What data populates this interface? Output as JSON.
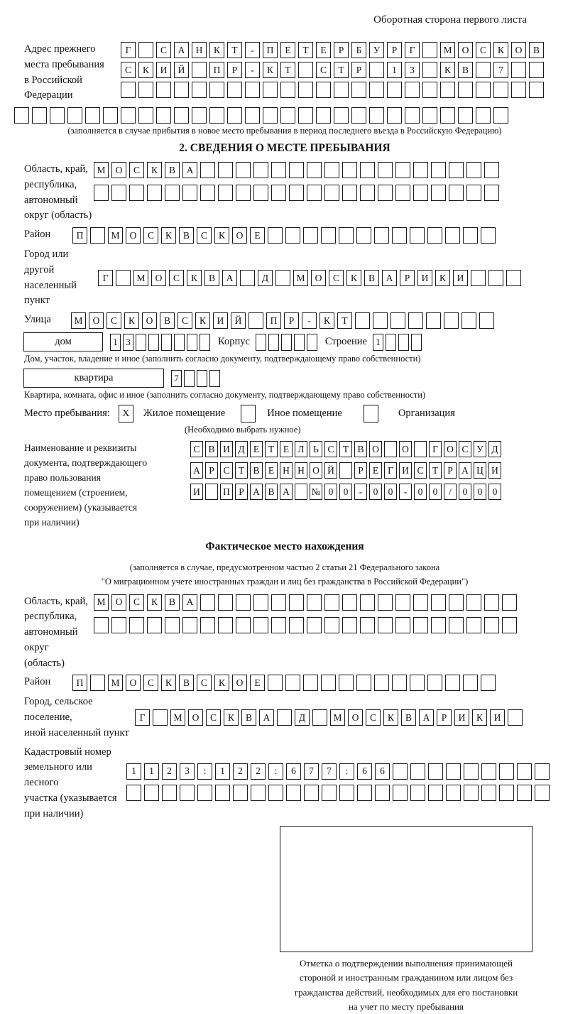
{
  "page": {
    "header_note": "Оборотная сторона первого листа"
  },
  "prev_address": {
    "label_lines": [
      "Адрес прежнего",
      "места пребывания",
      "в Российской",
      "Федерации"
    ],
    "row1": [
      "Г",
      "",
      "С",
      "А",
      "Н",
      "К",
      "Т",
      "-",
      "П",
      "Е",
      "Т",
      "Е",
      "Р",
      "Б",
      "У",
      "Р",
      "Г",
      "",
      "М",
      "О",
      "С",
      "К",
      "О",
      "В"
    ],
    "row2": [
      "С",
      "К",
      "И",
      "Й",
      "",
      "П",
      "Р",
      "-",
      "К",
      "Т",
      "",
      "С",
      "Т",
      "Р",
      "",
      "1",
      "3",
      "",
      "К",
      "В",
      "",
      "7",
      "",
      ""
    ],
    "row3": [
      "",
      "",
      "",
      "",
      "",
      "",
      "",
      "",
      "",
      "",
      "",
      "",
      "",
      "",
      "",
      "",
      "",
      "",
      "",
      "",
      "",
      "",
      "",
      ""
    ],
    "row4": [
      "",
      "",
      "",
      "",
      "",
      "",
      "",
      "",
      "",
      "",
      "",
      "",
      "",
      "",
      "",
      "",
      "",
      "",
      "",
      "",
      "",
      "",
      "",
      "",
      "",
      "",
      "",
      ""
    ],
    "footnote": "(заполняется в случае прибытия в новое место пребывания в период последнего въезда в Российскую Федерацию)"
  },
  "section2": {
    "heading": "2. СВЕДЕНИЯ О МЕСТЕ ПРЕБЫВАНИЯ",
    "oblast": {
      "label_lines": [
        "Область, край,",
        "республика,",
        "автономный",
        "округ (область)"
      ],
      "row1": [
        "М",
        "О",
        "С",
        "К",
        "В",
        "А",
        "",
        "",
        "",
        "",
        "",
        "",
        "",
        "",
        "",
        "",
        "",
        "",
        "",
        "",
        "",
        "",
        ""
      ],
      "row2": [
        "",
        "",
        "",
        "",
        "",
        "",
        "",
        "",
        "",
        "",
        "",
        "",
        "",
        "",
        "",
        "",
        "",
        "",
        "",
        "",
        "",
        "",
        ""
      ]
    },
    "raion": {
      "label": "Район",
      "row": [
        "П",
        "",
        "М",
        "О",
        "С",
        "К",
        "В",
        "С",
        "К",
        "О",
        "Е",
        "",
        "",
        "",
        "",
        "",
        "",
        "",
        "",
        "",
        "",
        "",
        "",
        ""
      ]
    },
    "gorod": {
      "label_lines": [
        "Город или другой",
        "населенный пункт"
      ],
      "row": [
        "Г",
        "",
        "М",
        "О",
        "С",
        "К",
        "В",
        "А",
        "",
        "Д",
        "",
        "М",
        "О",
        "С",
        "К",
        "В",
        "А",
        "Р",
        "И",
        "К",
        "И",
        "",
        "",
        ""
      ]
    },
    "ulitsa": {
      "label": "Улица",
      "row": [
        "М",
        "О",
        "С",
        "К",
        "О",
        "В",
        "С",
        "К",
        "И",
        "Й",
        "",
        "П",
        "Р",
        "-",
        "К",
        "Т",
        "",
        "",
        "",
        "",
        "",
        "",
        "",
        ""
      ]
    },
    "dom": {
      "box_label": "дом",
      "cells": [
        "1",
        "3",
        "",
        "",
        "",
        "",
        "",
        ""
      ],
      "korpus_label": "Корпус",
      "korpus_cells": [
        "",
        "",
        "",
        "",
        ""
      ],
      "stroenie_label": "Строение",
      "stroenie_cells": [
        "1",
        "",
        "",
        ""
      ]
    },
    "dom_caption": "Дом, участок, владение и иное (заполнить согласно документу, подтверждающему право собственности)",
    "kvartira": {
      "box_label": "квартира",
      "cells": [
        "7",
        "",
        "",
        ""
      ]
    },
    "kvartira_caption": "Квартира, комната, офис и иное (заполнить согласно документу, подтверждающему право собственности)",
    "mesto": {
      "label": "Место пребывания:",
      "options": [
        {
          "label": "Жилое помещение",
          "mark": "X"
        },
        {
          "label": "Иное помещение",
          "mark": ""
        },
        {
          "label": "Организация",
          "mark": ""
        }
      ],
      "note": "(Необходимо выбрать нужное)"
    },
    "doc": {
      "label_lines": [
        "Наименование и реквизиты",
        "документа, подтверждающего",
        "право пользования",
        "помещением (строением,",
        "сооружением) (указывается",
        "при наличии)"
      ],
      "row1": [
        "С",
        "В",
        "И",
        "Д",
        "Е",
        "Т",
        "Е",
        "Л",
        "Ь",
        "С",
        "Т",
        "В",
        "О",
        "",
        "О",
        "",
        "Г",
        "О",
        "С",
        "У",
        "Д"
      ],
      "row2": [
        "А",
        "Р",
        "С",
        "Т",
        "В",
        "Е",
        "Н",
        "Н",
        "О",
        "Й",
        "",
        "Р",
        "Е",
        "Г",
        "И",
        "С",
        "Т",
        "Р",
        "А",
        "Ц",
        "И"
      ],
      "row3": [
        "И",
        "",
        "П",
        "Р",
        "А",
        "В",
        "А",
        "",
        "№",
        "0",
        "0",
        "-",
        "0",
        "0",
        "-",
        "0",
        "0",
        "/",
        "0",
        "0",
        "0"
      ]
    }
  },
  "fact": {
    "heading": "Фактическое место нахождения",
    "note_lines": [
      "(заполняется в случае, предусмотренном частью 2 статьи 21 Федерального закона",
      "\"О миграционном учете иностранных граждан и лиц без гражданства в Российской Федерации\")"
    ],
    "oblast": {
      "label_lines": [
        "Область, край,",
        "республика,",
        "автономный округ",
        "(область)"
      ],
      "row1": [
        "М",
        "О",
        "С",
        "К",
        "В",
        "А",
        "",
        "",
        "",
        "",
        "",
        "",
        "",
        "",
        "",
        "",
        "",
        "",
        "",
        "",
        "",
        "",
        "",
        ""
      ],
      "row2": [
        "",
        "",
        "",
        "",
        "",
        "",
        "",
        "",
        "",
        "",
        "",
        "",
        "",
        "",
        "",
        "",
        "",
        "",
        "",
        "",
        "",
        "",
        "",
        ""
      ]
    },
    "raion": {
      "label": "Район",
      "row": [
        "П",
        "",
        "М",
        "О",
        "С",
        "К",
        "В",
        "С",
        "К",
        "О",
        "Е",
        "",
        "",
        "",
        "",
        "",
        "",
        "",
        "",
        "",
        "",
        "",
        "",
        ""
      ]
    },
    "gorod": {
      "label_lines": [
        "Город, сельское поселение,",
        "иной населенный пункт"
      ],
      "row": [
        "Г",
        "",
        "М",
        "О",
        "С",
        "К",
        "В",
        "А",
        "",
        "Д",
        "",
        "М",
        "О",
        "С",
        "К",
        "В",
        "А",
        "Р",
        "И",
        "К",
        "И",
        ""
      ]
    },
    "kadastr": {
      "label_lines": [
        "Кадастровый номер",
        "земельного или лесного",
        "участка (указывается",
        "при наличии)"
      ],
      "row1": [
        "1",
        "1",
        "2",
        "3",
        ":",
        "1",
        "2",
        "2",
        ":",
        "6",
        "7",
        "7",
        ":",
        "6",
        "6",
        "",
        "",
        "",
        "",
        "",
        "",
        "",
        "",
        ""
      ],
      "row2": [
        "",
        "",
        "",
        "",
        "",
        "",
        "",
        "",
        "",
        "",
        "",
        "",
        "",
        "",
        "",
        "",
        "",
        "",
        "",
        "",
        "",
        "",
        "",
        ""
      ]
    },
    "stamp_caption_lines": [
      "Отметка о подтверждении выполнения принимающей",
      "стороной и иностранным гражданином или лицом без",
      "гражданства действий, необходимых для его постановки",
      "на учет по месту пребывания"
    ]
  }
}
